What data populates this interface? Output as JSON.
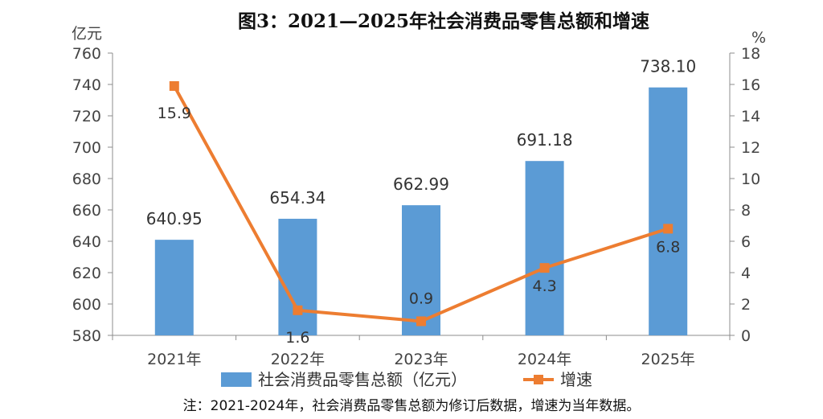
{
  "chart_data": {
    "type": "bar",
    "title": "图3：2021—2025年社会消费品零售总额和增速",
    "categories": [
      "2021年",
      "2022年",
      "2023年",
      "2024年",
      "2025年"
    ],
    "series": [
      {
        "name": "社会消费品零售总额（亿元）",
        "type": "bar",
        "axis": "left",
        "values": [
          640.95,
          654.34,
          662.99,
          691.18,
          738.1
        ],
        "labels": [
          "640.95",
          "654.34",
          "662.99",
          "691.18",
          "738.10"
        ],
        "color": "#5b9bd5"
      },
      {
        "name": "增速",
        "type": "line",
        "axis": "right",
        "values": [
          15.9,
          1.6,
          0.9,
          4.3,
          6.8
        ],
        "labels": [
          "15.9",
          "1.6",
          "0.9",
          "4.3",
          "6.8"
        ],
        "color": "#ed7d31"
      }
    ],
    "y_left": {
      "unit": "亿元",
      "range": [
        580,
        760
      ],
      "ticks": [
        "580",
        "600",
        "620",
        "640",
        "660",
        "680",
        "700",
        "720",
        "740",
        "760"
      ]
    },
    "y_right": {
      "unit": "%",
      "range": [
        0,
        18
      ],
      "ticks": [
        "0",
        "2",
        "4",
        "6",
        "8",
        "10",
        "12",
        "14",
        "16",
        "18"
      ]
    },
    "legend_position": "bottom",
    "grid": false,
    "note": "注：2021-2024年，社会消费品零售总额为修订后数据，增速为当年数据。"
  }
}
